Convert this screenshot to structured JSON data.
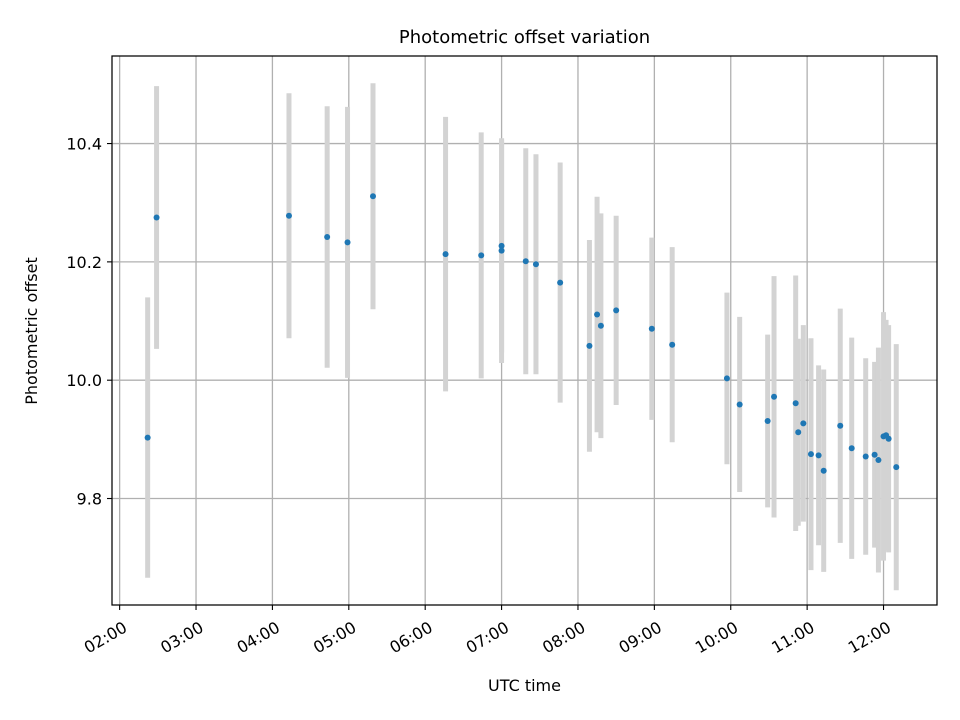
{
  "chart_data": {
    "type": "scatter",
    "title": "Photometric offset variation",
    "xlabel": "UTC time",
    "ylabel": "Photometric offset",
    "grid": true,
    "xlim": [
      "01:54",
      "12:42"
    ],
    "ylim": [
      9.62,
      10.548
    ],
    "x_ticks": [
      "02:00",
      "03:00",
      "04:00",
      "05:00",
      "06:00",
      "07:00",
      "08:00",
      "09:00",
      "10:00",
      "11:00",
      "12:00"
    ],
    "y_ticks": [
      "9.8",
      "10.0",
      "10.2",
      "10.4"
    ],
    "colors": {
      "point": "#1f77b4",
      "errorbar": "#d3d3d3",
      "grid": "#b0b0b0"
    },
    "series": [
      {
        "points": [
          {
            "time": "02:22",
            "y": 9.903,
            "yerr": 0.237
          },
          {
            "time": "02:29",
            "y": 10.275,
            "yerr": 0.222
          },
          {
            "time": "04:13",
            "y": 10.278,
            "yerr": 0.207
          },
          {
            "time": "04:43",
            "y": 10.242,
            "yerr": 0.221
          },
          {
            "time": "04:59",
            "y": 10.233,
            "yerr": 0.229
          },
          {
            "time": "05:19",
            "y": 10.311,
            "yerr": 0.191
          },
          {
            "time": "06:16",
            "y": 10.213,
            "yerr": 0.232
          },
          {
            "time": "06:44",
            "y": 10.211,
            "yerr": 0.208
          },
          {
            "time": "07:00",
            "y": 10.227,
            "yerr": 0.18
          },
          {
            "time": "07:00",
            "y": 10.219,
            "yerr": 0.19
          },
          {
            "time": "07:19",
            "y": 10.201,
            "yerr": 0.191
          },
          {
            "time": "07:27",
            "y": 10.196,
            "yerr": 0.186
          },
          {
            "time": "07:46",
            "y": 10.165,
            "yerr": 0.203
          },
          {
            "time": "08:09",
            "y": 10.058,
            "yerr": 0.179
          },
          {
            "time": "08:15",
            "y": 10.111,
            "yerr": 0.199
          },
          {
            "time": "08:18",
            "y": 10.092,
            "yerr": 0.19
          },
          {
            "time": "08:30",
            "y": 10.118,
            "yerr": 0.16
          },
          {
            "time": "08:58",
            "y": 10.087,
            "yerr": 0.154
          },
          {
            "time": "09:14",
            "y": 10.06,
            "yerr": 0.165
          },
          {
            "time": "09:57",
            "y": 10.003,
            "yerr": 0.145
          },
          {
            "time": "10:07",
            "y": 9.959,
            "yerr": 0.148
          },
          {
            "time": "10:29",
            "y": 9.931,
            "yerr": 0.146
          },
          {
            "time": "10:34",
            "y": 9.972,
            "yerr": 0.204
          },
          {
            "time": "10:51",
            "y": 9.961,
            "yerr": 0.216
          },
          {
            "time": "10:53",
            "y": 9.912,
            "yerr": 0.158
          },
          {
            "time": "10:57",
            "y": 9.927,
            "yerr": 0.166
          },
          {
            "time": "11:03",
            "y": 9.875,
            "yerr": 0.196
          },
          {
            "time": "11:09",
            "y": 9.873,
            "yerr": 0.152
          },
          {
            "time": "11:13",
            "y": 9.847,
            "yerr": 0.171
          },
          {
            "time": "11:26",
            "y": 9.923,
            "yerr": 0.198
          },
          {
            "time": "11:35",
            "y": 9.885,
            "yerr": 0.187
          },
          {
            "time": "11:46",
            "y": 9.871,
            "yerr": 0.166
          },
          {
            "time": "11:53",
            "y": 9.874,
            "yerr": 0.157
          },
          {
            "time": "11:56",
            "y": 9.865,
            "yerr": 0.19
          },
          {
            "time": "12:00",
            "y": 9.905,
            "yerr": 0.21
          },
          {
            "time": "12:02",
            "y": 9.907,
            "yerr": 0.195
          },
          {
            "time": "12:04",
            "y": 9.901,
            "yerr": 0.192
          },
          {
            "time": "12:10",
            "y": 9.853,
            "yerr": 0.208
          }
        ]
      }
    ]
  }
}
